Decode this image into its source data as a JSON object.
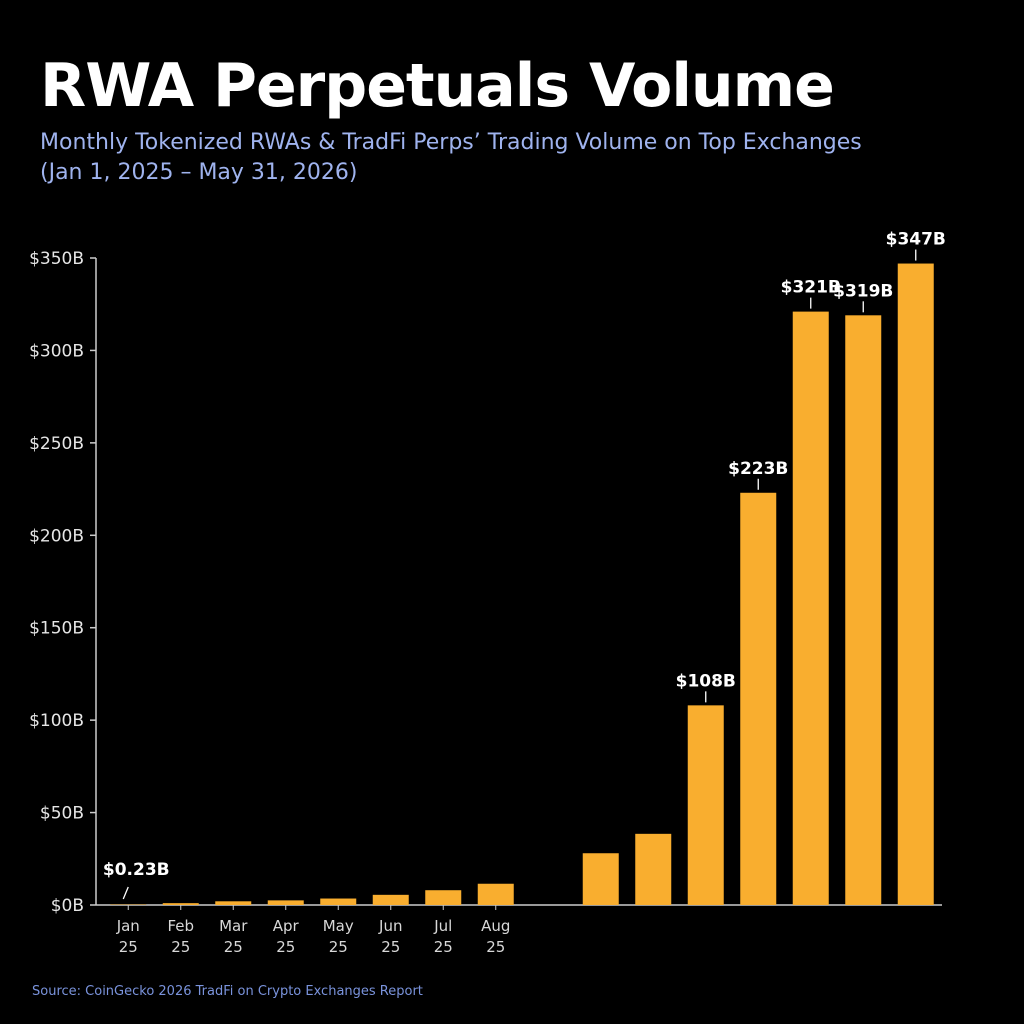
{
  "title": "RWA Perpetuals Volume",
  "subtitle_line1": "Monthly Tokenized RWAs & TradFi Perps’ Trading Volume on Top Exchanges",
  "subtitle_line2": "(Jan 1, 2025 – May 31, 2026)",
  "source": "Source: CoinGecko 2026 TradFi on Crypto Exchanges Report",
  "colors": {
    "bar": "#f9ae2f",
    "axis": "#cccccc",
    "background": "#000000"
  },
  "chart_data": {
    "type": "bar",
    "categories": [
      "Jan\n25",
      "Feb\n25",
      "Mar\n25",
      "Apr\n25",
      "May\n25",
      "Jun\n25",
      "Jul\n25",
      "Aug\n25",
      "",
      "",
      "",
      "",
      "",
      "",
      "",
      ""
    ],
    "values": [
      0.23,
      1,
      2,
      2.5,
      3.5,
      5.5,
      8,
      11.5,
      0,
      28,
      38.5,
      108,
      223,
      321,
      319,
      347
    ],
    "data_labels": [
      "$0.23B",
      "",
      "",
      "",
      "",
      "",
      "",
      "",
      "",
      "",
      "",
      "$108B",
      "$223B",
      "$321B",
      "$319B",
      "$347B"
    ],
    "ylim": [
      0,
      350
    ],
    "y_ticks": [
      0,
      50,
      100,
      150,
      200,
      250,
      300,
      350
    ],
    "y_tick_labels": [
      "$0B",
      "$50B",
      "$100B",
      "$150B",
      "$200B",
      "$250B",
      "$300B",
      "$350B"
    ],
    "xlabel": "",
    "ylabel": "",
    "grid": false
  }
}
